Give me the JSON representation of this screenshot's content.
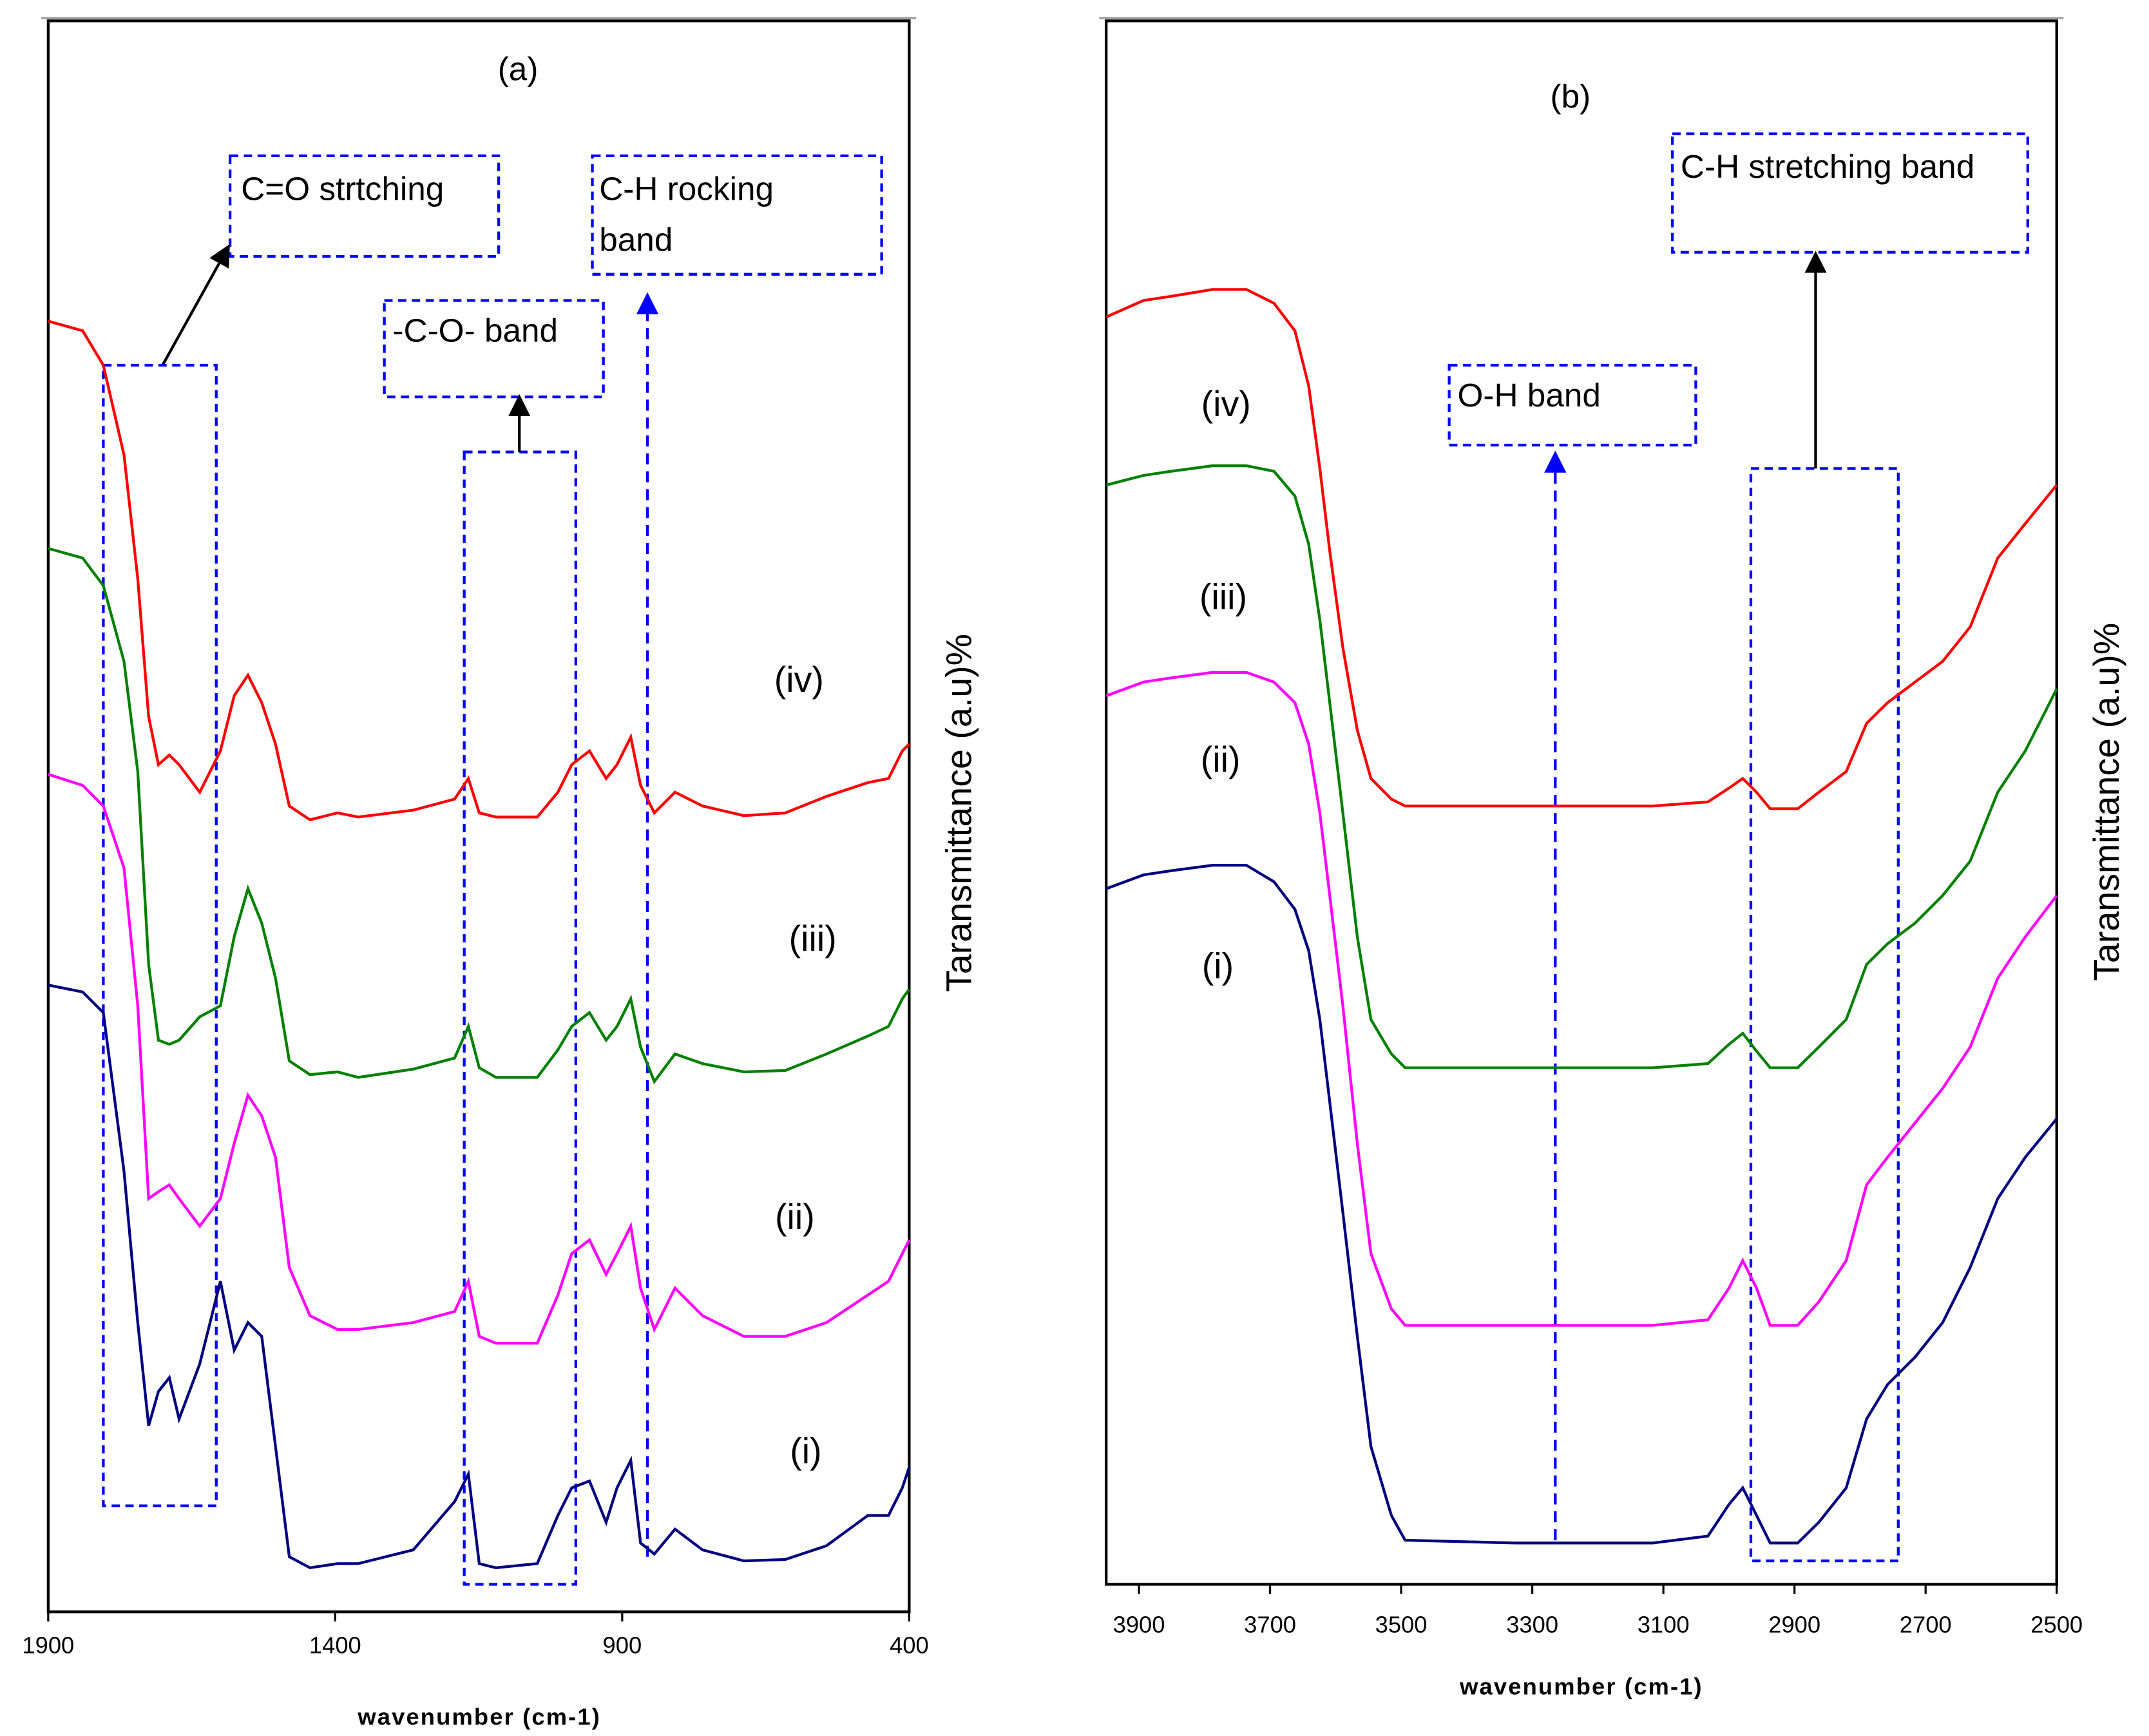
{
  "chart_data": [
    {
      "type": "line",
      "title": "(a)",
      "xlabel": "wavenumber (cm-1)",
      "ylabel": "Taransmittance (a.u)%",
      "xlim": [
        1900,
        400
      ],
      "xticks": [
        1900,
        1400,
        900,
        400
      ],
      "ylim": [
        0,
        1155
      ],
      "annotations": [
        [
          "C=O strtching"
        ],
        [
          "-C-O- band"
        ],
        [
          "C-H rocking",
          "band"
        ]
      ],
      "x": [
        1900,
        1840,
        1804,
        1768,
        1744,
        1725,
        1708,
        1689,
        1672,
        1636,
        1600,
        1576,
        1552,
        1528,
        1504,
        1480,
        1444,
        1396,
        1360,
        1264,
        1192,
        1168,
        1149,
        1120,
        1048,
        1012,
        988,
        957,
        928,
        909,
        885,
        868,
        844,
        808,
        760,
        688,
        616,
        544,
        472,
        436,
        412,
        400
      ],
      "series": [
        {
          "name": "(i)",
          "color": "#000080",
          "values": [
            455,
            450,
            435,
            320,
            210,
            135,
            160,
            170,
            140,
            180,
            240,
            190,
            210,
            200,
            120,
            40,
            32,
            35,
            35,
            45,
            80,
            100,
            35,
            32,
            35,
            70,
            90,
            95,
            65,
            90,
            110,
            50,
            42,
            60,
            45,
            37,
            38,
            48,
            70,
            70,
            90,
            105
          ]
        },
        {
          "name": "(ii)",
          "color": "#ff00ff",
          "values": [
            608,
            600,
            585,
            540,
            440,
            300,
            305,
            310,
            300,
            280,
            300,
            340,
            375,
            360,
            330,
            250,
            215,
            205,
            205,
            210,
            218,
            240,
            200,
            195,
            195,
            230,
            260,
            270,
            245,
            260,
            280,
            235,
            205,
            235,
            215,
            200,
            200,
            210,
            230,
            240,
            260,
            270
          ]
        },
        {
          "name": "(iii)",
          "color": "#008000",
          "values": [
            772,
            765,
            745,
            690,
            610,
            470,
            415,
            412,
            415,
            432,
            440,
            490,
            525,
            500,
            460,
            400,
            390,
            392,
            388,
            394,
            402,
            425,
            395,
            388,
            388,
            408,
            425,
            435,
            415,
            425,
            445,
            410,
            385,
            405,
            398,
            392,
            393,
            405,
            418,
            425,
            445,
            452
          ]
        },
        {
          "name": "(iv)",
          "color": "#ff0000",
          "values": [
            937,
            930,
            905,
            840,
            750,
            650,
            615,
            622,
            615,
            595,
            625,
            665,
            680,
            660,
            630,
            585,
            575,
            580,
            577,
            582,
            590,
            605,
            580,
            577,
            577,
            595,
            615,
            625,
            605,
            615,
            635,
            600,
            580,
            595,
            585,
            578,
            580,
            592,
            602,
            605,
            625,
            630
          ]
        }
      ]
    },
    {
      "type": "line",
      "title": "(b)",
      "xlabel": "wavenumber (cm-1)",
      "ylabel": "Taransmittance (a.u)%",
      "xlim": [
        3950,
        2500
      ],
      "xticks": [
        3900,
        3700,
        3500,
        3300,
        3100,
        2900,
        2700,
        2500
      ],
      "ylim": [
        0,
        1135
      ],
      "annotations": [
        [
          "O-H band"
        ],
        [
          "C-H stretching band"
        ]
      ],
      "x": [
        3950,
        3893,
        3851,
        3788,
        3736,
        3694,
        3662,
        3641,
        3624,
        3609,
        3589,
        3567,
        3546,
        3515,
        3494,
        3326,
        3116,
        3032,
        3000,
        2979,
        2958,
        2937,
        2895,
        2863,
        2821,
        2790,
        2758,
        2716,
        2674,
        2632,
        2590,
        2548,
        2500
      ],
      "series": [
        {
          "name": "(i)",
          "color": "#000080",
          "values": [
            505,
            515,
            518,
            522,
            522,
            510,
            490,
            460,
            410,
            350,
            270,
            180,
            100,
            50,
            32,
            30,
            30,
            35,
            58,
            70,
            50,
            30,
            30,
            45,
            70,
            120,
            145,
            165,
            190,
            230,
            280,
            310,
            338
          ]
        },
        {
          "name": "(ii)",
          "color": "#ff00ff",
          "values": [
            645,
            655,
            658,
            662,
            662,
            655,
            640,
            610,
            560,
            500,
            420,
            320,
            240,
            200,
            188,
            188,
            188,
            192,
            215,
            235,
            215,
            188,
            188,
            205,
            235,
            290,
            310,
            335,
            360,
            390,
            440,
            470,
            500
          ]
        },
        {
          "name": "(iii)",
          "color": "#008000",
          "values": [
            798,
            805,
            808,
            812,
            812,
            808,
            790,
            755,
            700,
            640,
            560,
            470,
            410,
            385,
            375,
            375,
            375,
            378,
            392,
            400,
            387,
            375,
            375,
            390,
            410,
            450,
            465,
            480,
            500,
            525,
            575,
            605,
            650
          ]
        },
        {
          "name": "(iv)",
          "color": "#ff0000",
          "values": [
            920,
            932,
            935,
            940,
            940,
            930,
            910,
            870,
            810,
            750,
            680,
            620,
            585,
            570,
            565,
            565,
            565,
            568,
            578,
            585,
            575,
            563,
            563,
            575,
            590,
            625,
            640,
            655,
            670,
            695,
            745,
            770,
            798
          ]
        }
      ]
    }
  ]
}
